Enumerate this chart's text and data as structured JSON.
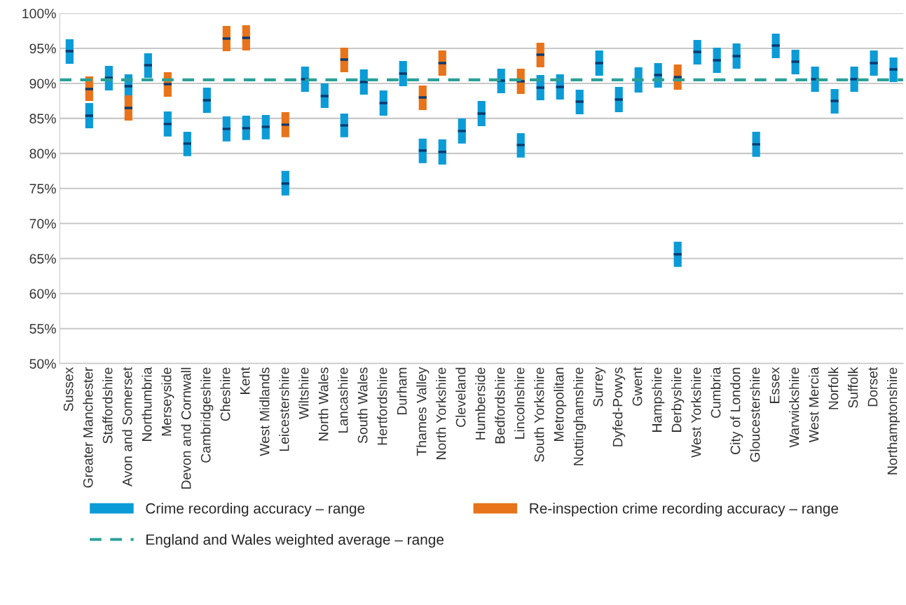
{
  "chart_data": {
    "type": "box",
    "categories": [
      "Sussex",
      "Greater Manchester",
      "Staffordshire",
      "Avon and Somerset",
      "Northumbria",
      "Merseyside",
      "Devon and Cornwall",
      "Cambridgeshire",
      "Cheshire",
      "Kent",
      "West Midlands",
      "Leicestershire",
      "Wiltshire",
      "North Wales",
      "Lancashire",
      "South Wales",
      "Hertfordshire",
      "Durham",
      "Thames Valley",
      "North Yorkshire",
      "Cleveland",
      "Humberside",
      "Bedfordshire",
      "Lincolnshire",
      "South Yorkshire",
      "Metropolitan",
      "Nottinghamshire",
      "Surrey",
      "Dyfed-Powys",
      "Gwent",
      "Hampshire",
      "Derbyshire",
      "West Yorkshire",
      "Cumbria",
      "City of London",
      "Gloucestershire",
      "Essex",
      "Warwickshire",
      "West Mercia",
      "Norfolk",
      "Suffolk",
      "Dorset",
      "Northamptonshire"
    ],
    "series": [
      {
        "name": "Crime recording accuracy – range",
        "color": "#0b9bd7",
        "boxes": [
          {
            "low": 92.8,
            "q1": 92.8,
            "median": 94.6,
            "q3": 96.3,
            "high": 96.3
          },
          {
            "low": 83.6,
            "q1": 83.6,
            "median": 85.4,
            "q3": 87.2,
            "high": 87.2
          },
          {
            "low": 89.0,
            "q1": 89.0,
            "median": 90.8,
            "q3": 92.5,
            "high": 92.5
          },
          {
            "low": 87.8,
            "q1": 87.8,
            "median": 89.6,
            "q3": 91.3,
            "high": 91.3
          },
          {
            "low": 90.8,
            "q1": 90.8,
            "median": 92.6,
            "q3": 94.3,
            "high": 94.3
          },
          {
            "low": 82.4,
            "q1": 82.4,
            "median": 84.2,
            "q3": 86.0,
            "high": 86.0
          },
          {
            "low": 79.6,
            "q1": 79.6,
            "median": 81.4,
            "q3": 83.1,
            "high": 83.1
          },
          {
            "low": 85.8,
            "q1": 85.8,
            "median": 87.6,
            "q3": 89.4,
            "high": 89.4
          },
          {
            "low": 81.7,
            "q1": 81.7,
            "median": 83.5,
            "q3": 85.3,
            "high": 85.3
          },
          {
            "low": 81.9,
            "q1": 81.9,
            "median": 83.6,
            "q3": 85.4,
            "high": 85.4
          },
          {
            "low": 82.0,
            "q1": 82.0,
            "median": 83.8,
            "q3": 85.5,
            "high": 85.5
          },
          {
            "low": 74.0,
            "q1": 74.0,
            "median": 75.7,
            "q3": 77.5,
            "high": 77.5
          },
          {
            "low": 88.8,
            "q1": 88.8,
            "median": 90.6,
            "q3": 92.4,
            "high": 92.4
          },
          {
            "low": 86.5,
            "q1": 86.5,
            "median": 88.2,
            "q3": 90.0,
            "high": 90.0
          },
          {
            "low": 82.3,
            "q1": 82.3,
            "median": 84.0,
            "q3": 85.7,
            "high": 85.7
          },
          {
            "low": 88.4,
            "q1": 88.4,
            "median": 90.2,
            "q3": 92.0,
            "high": 92.0
          },
          {
            "low": 85.4,
            "q1": 85.4,
            "median": 87.2,
            "q3": 89.0,
            "high": 89.0
          },
          {
            "low": 89.6,
            "q1": 89.6,
            "median": 91.4,
            "q3": 93.2,
            "high": 93.2
          },
          {
            "low": 78.6,
            "q1": 78.6,
            "median": 80.4,
            "q3": 82.1,
            "high": 82.1
          },
          {
            "low": 78.4,
            "q1": 78.4,
            "median": 80.2,
            "q3": 82.0,
            "high": 82.0
          },
          {
            "low": 81.4,
            "q1": 81.4,
            "median": 83.2,
            "q3": 85.0,
            "high": 85.0
          },
          {
            "low": 83.9,
            "q1": 83.9,
            "median": 85.7,
            "q3": 87.5,
            "high": 87.5
          },
          {
            "low": 88.6,
            "q1": 88.6,
            "median": 90.4,
            "q3": 92.1,
            "high": 92.1
          },
          {
            "low": 79.4,
            "q1": 79.4,
            "median": 81.2,
            "q3": 82.9,
            "high": 82.9
          },
          {
            "low": 87.6,
            "q1": 87.6,
            "median": 89.4,
            "q3": 91.2,
            "high": 91.2
          },
          {
            "low": 87.7,
            "q1": 87.7,
            "median": 89.5,
            "q3": 91.3,
            "high": 91.3
          },
          {
            "low": 85.6,
            "q1": 85.6,
            "median": 87.4,
            "q3": 89.1,
            "high": 89.1
          },
          {
            "low": 91.1,
            "q1": 91.1,
            "median": 92.9,
            "q3": 94.7,
            "high": 94.7
          },
          {
            "low": 85.9,
            "q1": 85.9,
            "median": 87.7,
            "q3": 89.5,
            "high": 89.5
          },
          {
            "low": 88.7,
            "q1": 88.7,
            "median": 90.5,
            "q3": 92.3,
            "high": 92.3
          },
          {
            "low": 89.4,
            "q1": 89.4,
            "median": 91.2,
            "q3": 92.9,
            "high": 92.9
          },
          {
            "low": 63.8,
            "q1": 63.8,
            "median": 65.6,
            "q3": 67.4,
            "high": 67.4
          },
          {
            "low": 92.7,
            "q1": 92.7,
            "median": 94.5,
            "q3": 96.2,
            "high": 96.2
          },
          {
            "low": 91.5,
            "q1": 91.5,
            "median": 93.3,
            "q3": 95.1,
            "high": 95.1
          },
          {
            "low": 92.1,
            "q1": 92.1,
            "median": 93.9,
            "q3": 95.7,
            "high": 95.7
          },
          {
            "low": 79.5,
            "q1": 79.5,
            "median": 81.3,
            "q3": 83.1,
            "high": 83.1
          },
          {
            "low": 93.6,
            "q1": 93.6,
            "median": 95.4,
            "q3": 97.1,
            "high": 97.1
          },
          {
            "low": 91.3,
            "q1": 91.3,
            "median": 93.1,
            "q3": 94.8,
            "high": 94.8
          },
          {
            "low": 88.8,
            "q1": 88.8,
            "median": 90.6,
            "q3": 92.4,
            "high": 92.4
          },
          {
            "low": 85.7,
            "q1": 85.7,
            "median": 87.5,
            "q3": 89.2,
            "high": 89.2
          },
          {
            "low": 88.8,
            "q1": 88.8,
            "median": 90.6,
            "q3": 92.4,
            "high": 92.4
          },
          {
            "low": 91.1,
            "q1": 91.1,
            "median": 92.9,
            "q3": 94.7,
            "high": 94.7
          },
          {
            "low": 90.2,
            "q1": 90.2,
            "median": 92.0,
            "q3": 93.7,
            "high": 93.7
          }
        ]
      },
      {
        "name": "Re-inspection crime recording accuracy – range",
        "color": "#e8731a",
        "boxes": [
          null,
          {
            "low": 87.5,
            "q1": 87.5,
            "median": 89.2,
            "q3": 91.0,
            "high": 91.0
          },
          null,
          {
            "low": 84.7,
            "q1": 84.7,
            "median": 86.5,
            "q3": 88.3,
            "high": 88.3
          },
          null,
          {
            "low": 88.1,
            "q1": 88.1,
            "median": 89.9,
            "q3": 91.6,
            "high": 91.6
          },
          null,
          null,
          {
            "low": 94.6,
            "q1": 94.6,
            "median": 96.4,
            "q3": 98.2,
            "high": 98.2
          },
          {
            "low": 94.7,
            "q1": 94.7,
            "median": 96.5,
            "q3": 98.3,
            "high": 98.3
          },
          null,
          {
            "low": 82.3,
            "q1": 82.3,
            "median": 84.1,
            "q3": 85.9,
            "high": 85.9
          },
          null,
          null,
          {
            "low": 91.6,
            "q1": 91.6,
            "median": 93.4,
            "q3": 95.1,
            "high": 95.1
          },
          null,
          null,
          null,
          {
            "low": 86.2,
            "q1": 86.2,
            "median": 88.0,
            "q3": 89.7,
            "high": 89.7
          },
          {
            "low": 91.1,
            "q1": 91.1,
            "median": 92.9,
            "q3": 94.7,
            "high": 94.7
          },
          null,
          null,
          null,
          {
            "low": 88.5,
            "q1": 88.5,
            "median": 90.3,
            "q3": 92.1,
            "high": 92.1
          },
          {
            "low": 92.3,
            "q1": 92.3,
            "median": 94.1,
            "q3": 95.8,
            "high": 95.8
          },
          null,
          null,
          null,
          null,
          null,
          null,
          {
            "low": 89.1,
            "q1": 89.1,
            "median": 90.9,
            "q3": 92.7,
            "high": 92.7
          },
          null,
          null,
          null,
          null,
          null,
          null,
          null,
          null,
          null,
          null,
          null
        ]
      }
    ],
    "ylim": [
      50,
      100
    ],
    "yticks": [
      {
        "value": 50,
        "label": "50%"
      },
      {
        "value": 55,
        "label": "55%"
      },
      {
        "value": 60,
        "label": "60%"
      },
      {
        "value": 65,
        "label": "65%"
      },
      {
        "value": 70,
        "label": "70%"
      },
      {
        "value": 75,
        "label": "75%"
      },
      {
        "value": 80,
        "label": "80%"
      },
      {
        "value": 85,
        "label": "85%"
      },
      {
        "value": 90,
        "label": "90%"
      },
      {
        "value": 95,
        "label": "95%"
      },
      {
        "value": 100,
        "label": "100%"
      }
    ],
    "grid": "y",
    "ref_lines": [
      {
        "axis": "y",
        "value": 90.5,
        "label": "England and Wales weighted average – range",
        "color": "#2aa198",
        "line_style": "dashed"
      }
    ],
    "legend": "bottom"
  }
}
